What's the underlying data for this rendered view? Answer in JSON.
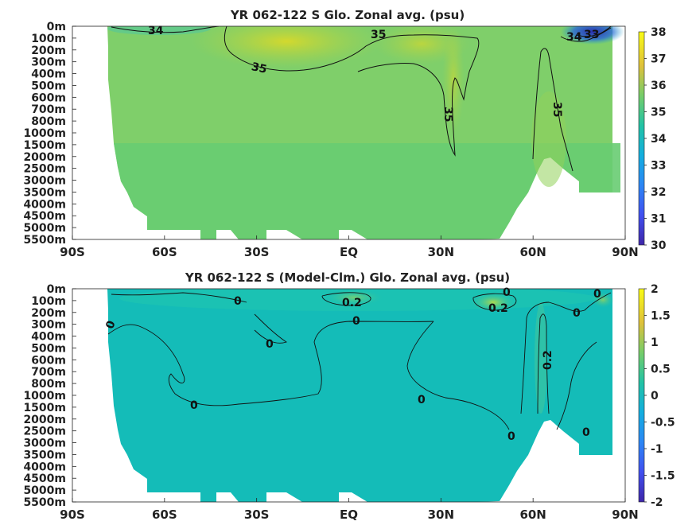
{
  "chart_data": [
    {
      "type": "heatmap",
      "title": "YR 062-122 S Glo. Zonal avg. (psu)",
      "x_ticks": [
        "90S",
        "60S",
        "30S",
        "EQ",
        "30N",
        "60N",
        "90N"
      ],
      "y_ticks": [
        "0m",
        "100m",
        "200m",
        "300m",
        "400m",
        "500m",
        "600m",
        "700m",
        "800m",
        "1000m",
        "1500m",
        "2000m",
        "2500m",
        "3000m",
        "3500m",
        "4000m",
        "4500m",
        "5000m",
        "5500m"
      ],
      "colorbar": {
        "min": 30,
        "max": 38,
        "ticks": [
          "30",
          "31",
          "32",
          "33",
          "34",
          "35",
          "36",
          "37",
          "38"
        ]
      },
      "contour_labels": [
        "34",
        "35",
        "35",
        "35",
        "35",
        "34",
        "33"
      ]
    },
    {
      "type": "heatmap",
      "title": "YR 062-122 S (Model-Clm.) Glo. Zonal avg. (psu)",
      "x_ticks": [
        "90S",
        "60S",
        "30S",
        "EQ",
        "30N",
        "60N",
        "90N"
      ],
      "y_ticks": [
        "0m",
        "100m",
        "200m",
        "300m",
        "400m",
        "500m",
        "600m",
        "700m",
        "800m",
        "1000m",
        "1500m",
        "2000m",
        "2500m",
        "3000m",
        "3500m",
        "4000m",
        "4500m",
        "5000m",
        "5500m"
      ],
      "colorbar": {
        "min": -2,
        "max": 2,
        "ticks": [
          "-2",
          "-1.5",
          "-1",
          "-0.5",
          "0",
          "0.5",
          "1",
          "1.5",
          "2"
        ]
      },
      "contour_labels": [
        "0",
        "0",
        "0",
        "0",
        "0.2",
        "0",
        "0",
        "0.2",
        "0.2",
        "0",
        "0",
        "0",
        "0"
      ]
    }
  ],
  "colors": {
    "ocean_main_top": "#7fcf6a",
    "ocean_deep_top": "#66cc70",
    "salty_subtropics": "#c8d93a",
    "fresh_arctic": "#2a2fae",
    "ocean_main_bottom": "#14bcb8",
    "fresh_bottom": "#1ca5c8",
    "salty_bottom": "#9dd75a"
  }
}
